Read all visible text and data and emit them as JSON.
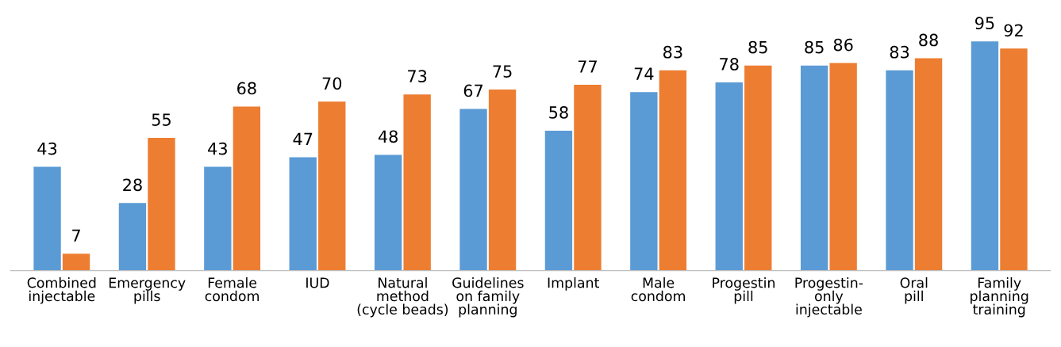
{
  "chart_data": {
    "type": "bar",
    "categories": [
      "Combined\ninjectable",
      "Emergency\npills",
      "Female\ncondom",
      "IUD",
      "Natural\nmethod\n(cycle beads)",
      "Guidelines\non family\nplanning",
      "Implant",
      "Male\ncondom",
      "Progestin\npill",
      "Progestin-\nonly\ninjectable",
      "Oral\npill",
      "Family\nplanning\ntraining"
    ],
    "series": [
      {
        "color": "#5b9bd5",
        "values": [
          43,
          28,
          43,
          47,
          48,
          67,
          58,
          74,
          78,
          85,
          83,
          95
        ]
      },
      {
        "color": "#ed7d31",
        "values": [
          7,
          55,
          68,
          70,
          73,
          75,
          77,
          83,
          85,
          86,
          88,
          92
        ]
      }
    ],
    "data_labels": true,
    "tick_labels": "x"
  }
}
